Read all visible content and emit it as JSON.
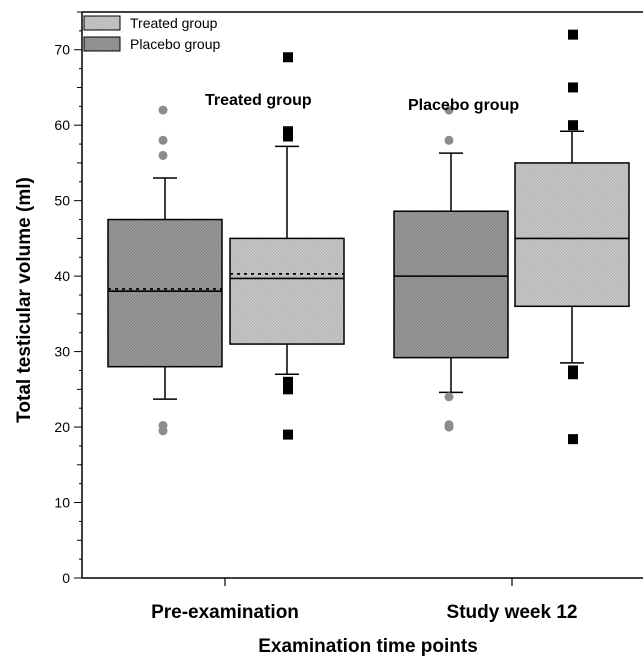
{
  "chart_data": {
    "type": "box",
    "ylabel": "Total testicular volume (ml)",
    "xlabel": "Examination time points",
    "ylim": [
      0,
      75
    ],
    "yticks": [
      0,
      10,
      20,
      30,
      40,
      50,
      60,
      70
    ],
    "categories": [
      "Pre-examination",
      "Study week 12"
    ],
    "legend": {
      "placement": "top-left",
      "entries": [
        "Treated group",
        "Placebo group"
      ]
    },
    "annotations": [
      "Treated group",
      "Placebo group"
    ],
    "colors": {
      "treated": "#c9c9c9",
      "placebo": "#9a9a9a",
      "outlier_circle": "#8c8c8c",
      "outlier_square": "#000000"
    },
    "series": [
      {
        "category": "Pre-examination",
        "box": "dark",
        "whisker_low": 23.7,
        "q1": 28.0,
        "median": 38.0,
        "mean": 38.3,
        "q3": 47.5,
        "whisker_high": 53.0,
        "outliers": [
          62.0,
          58.0,
          56.0,
          20.2,
          19.5
        ],
        "outlier_marker": "circle"
      },
      {
        "category": "Pre-examination",
        "box": "light",
        "whisker_low": 27.0,
        "q1": 31.0,
        "median": 39.7,
        "mean": 40.3,
        "q3": 45.0,
        "whisker_high": 57.2,
        "outliers": [
          69.0,
          59.2,
          58.5,
          26.0,
          25.0,
          19.0
        ],
        "outlier_marker": "square"
      },
      {
        "category": "Study week 12",
        "box": "dark",
        "whisker_low": 24.6,
        "q1": 29.2,
        "median": 40.0,
        "q3": 48.6,
        "whisker_high": 56.3,
        "outliers": [
          62.0,
          58.0,
          24.0,
          20.3,
          20.0
        ],
        "outlier_marker": "circle"
      },
      {
        "category": "Study week 12",
        "box": "light",
        "whisker_low": 28.5,
        "q1": 36.0,
        "median": 45.0,
        "q3": 55.0,
        "whisker_high": 59.2,
        "outliers": [
          72.0,
          65.0,
          60.0,
          27.5,
          27.0,
          18.4
        ],
        "outlier_marker": "square"
      }
    ]
  }
}
